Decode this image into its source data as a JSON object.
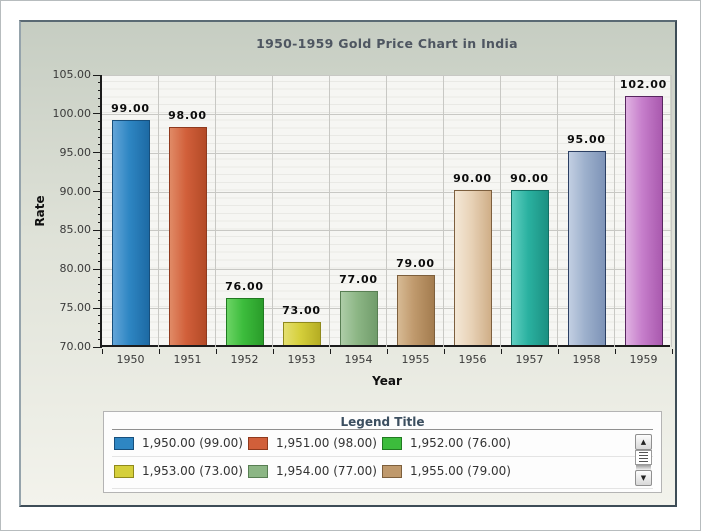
{
  "chart": {
    "title": "1950-1959 Gold Price Chart in India",
    "xlabel": "Year",
    "ylabel": "Rate"
  },
  "chart_data": {
    "type": "bar",
    "title": "1950-1959 Gold Price Chart in India",
    "xlabel": "Year",
    "ylabel": "Rate",
    "categories": [
      "1950",
      "1951",
      "1952",
      "1953",
      "1954",
      "1955",
      "1956",
      "1957",
      "1958",
      "1959"
    ],
    "values": [
      99,
      98,
      76,
      73,
      77,
      79,
      90,
      90,
      95,
      102
    ],
    "value_labels": [
      "99.00",
      "98.00",
      "76.00",
      "73.00",
      "77.00",
      "79.00",
      "90.00",
      "90.00",
      "95.00",
      "102.00"
    ],
    "ylim": [
      70,
      105
    ],
    "ytick_step": 5,
    "ytick_labels": [
      "105.00",
      "100.00",
      "95.00",
      "90.00",
      "85.00",
      "80.00",
      "75.00",
      "70.00"
    ],
    "grid": true,
    "legend_position": "bottom",
    "bar_colors": [
      {
        "light": "#63a5d8",
        "base": "#2e86c3",
        "dark": "#1d6aa4",
        "border": "#174f7c"
      },
      {
        "light": "#e08a66",
        "base": "#d15f3a",
        "dark": "#b34a27",
        "border": "#8f3a1e"
      },
      {
        "light": "#6cd465",
        "base": "#3cbc3c",
        "dark": "#2a9c2a",
        "border": "#217a21"
      },
      {
        "light": "#e5e070",
        "base": "#d5cf3b",
        "dark": "#b5ad23",
        "border": "#8f891c"
      },
      {
        "light": "#aecda8",
        "base": "#8cb685",
        "dark": "#719c6b",
        "border": "#587e53"
      },
      {
        "light": "#d7ba94",
        "base": "#bf996c",
        "dark": "#a37c4f",
        "border": "#7d5f3c"
      },
      {
        "light": "#f4e8d6",
        "base": "#e8d2b7",
        "dark": "#cfae87",
        "border": "#7d5f3e"
      },
      {
        "light": "#5fcec0",
        "base": "#2ab1a0",
        "dark": "#1c9082",
        "border": "#136f64"
      },
      {
        "light": "#c2cfe2",
        "base": "#9db0cc",
        "dark": "#7d93b7",
        "border": "#2b3f63"
      },
      {
        "light": "#e0b2e2",
        "base": "#c67ecb",
        "dark": "#a959ae",
        "border": "#57265f"
      }
    ]
  },
  "legend": {
    "title": "Legend Title",
    "items": [
      {
        "label": "1,950.00 (99.00)",
        "color": "#2e86c3",
        "border": "#174f7c"
      },
      {
        "label": "1,951.00 (98.00)",
        "color": "#d15f3a",
        "border": "#8f3a1e"
      },
      {
        "label": "1,952.00 (76.00)",
        "color": "#3cbc3c",
        "border": "#217a21"
      },
      {
        "label": "1,953.00 (73.00)",
        "color": "#d5cf3b",
        "border": "#8f891c"
      },
      {
        "label": "1,954.00 (77.00)",
        "color": "#8cb685",
        "border": "#587e53"
      },
      {
        "label": "1,955.00 (79.00)",
        "color": "#bf996c",
        "border": "#7d5f3c"
      }
    ],
    "scrollbar": {
      "up_arrow": "▲",
      "down_arrow": "▼"
    }
  },
  "colors": {
    "panel_background_top": "#c6cdc2",
    "panel_background_bottom": "#f3f3ec",
    "panel_border": "#3e4d57",
    "plot_background": "#f6f6f3",
    "gridline": "#c8c8c4",
    "axis": "#1c1c1c",
    "title_text": "#4e5661",
    "legend_title_text": "#3c4f60"
  }
}
